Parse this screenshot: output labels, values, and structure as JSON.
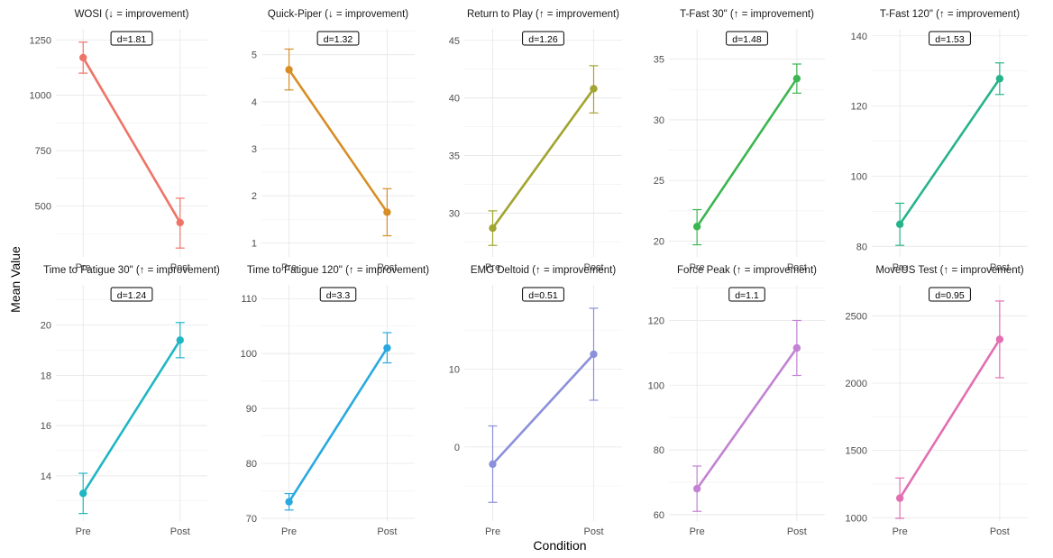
{
  "chart_data": {
    "type": "line",
    "xlabel": "Condition",
    "ylabel": "Mean Value",
    "categories": [
      "Pre",
      "Post"
    ],
    "grid": true,
    "panels": [
      {
        "title": "WOSI (↓ = improvement)",
        "effect": "d=1.81",
        "color": "#ee7468",
        "ylim": [
          270,
          1300
        ],
        "ticks": [
          500,
          750,
          1000,
          1250
        ],
        "tick_labels": [
          "500",
          "750",
          "1000",
          "1250"
        ],
        "values": [
          1170,
          425
        ],
        "error_low": [
          1100,
          310
        ],
        "error_high": [
          1240,
          535
        ]
      },
      {
        "title": "Quick-Piper (↓ = improvement)",
        "effect": "d=1.32",
        "color": "#d78e27",
        "ylim": [
          0.7,
          5.55
        ],
        "ticks": [
          1,
          2,
          3,
          4,
          5
        ],
        "tick_labels": [
          "1",
          "2",
          "3",
          "4",
          "5"
        ],
        "values": [
          4.68,
          1.65
        ],
        "error_low": [
          4.25,
          1.15
        ],
        "error_high": [
          5.12,
          2.15
        ]
      },
      {
        "title": "Return to Play (↑ = improvement)",
        "effect": "d=1.26",
        "color": "#a2a530",
        "ylim": [
          26.2,
          46.0
        ],
        "ticks": [
          30,
          35,
          40,
          45
        ],
        "tick_labels": [
          "30",
          "35",
          "40",
          "45"
        ],
        "values": [
          28.7,
          40.8
        ],
        "error_low": [
          27.2,
          38.7
        ],
        "error_high": [
          30.2,
          42.8
        ]
      },
      {
        "title": "T-Fast 30\" (↑ = improvement)",
        "effect": "d=1.48",
        "color": "#3cb650",
        "ylim": [
          18.7,
          37.5
        ],
        "ticks": [
          20,
          25,
          30,
          35
        ],
        "tick_labels": [
          "20",
          "25",
          "30",
          "35"
        ],
        "values": [
          21.2,
          33.4
        ],
        "error_low": [
          19.7,
          32.2
        ],
        "error_high": [
          22.6,
          34.6
        ]
      },
      {
        "title": "T-Fast 120\" (↑ = improvement)",
        "effect": "d=1.53",
        "color": "#27b38a",
        "ylim": [
          77,
          142
        ],
        "ticks": [
          80,
          100,
          120,
          140
        ],
        "tick_labels": [
          "80",
          "100",
          "120",
          "140"
        ],
        "values": [
          86.3,
          127.8
        ],
        "error_low": [
          80.3,
          123.3
        ],
        "error_high": [
          92.3,
          132.3
        ]
      },
      {
        "title": "Time to Fatigue 30\" (↑ = improvement)",
        "effect": "d=1.24",
        "color": "#1fb6c4",
        "ylim": [
          12.2,
          21.6
        ],
        "ticks": [
          14,
          16,
          18,
          20
        ],
        "tick_labels": [
          "14",
          "16",
          "18",
          "20"
        ],
        "values": [
          13.3,
          19.4
        ],
        "error_low": [
          12.5,
          18.7
        ],
        "error_high": [
          14.1,
          20.1
        ]
      },
      {
        "title": "Time to Fatigue 120\" (↑ = improvement)",
        "effect": "d=3.3",
        "color": "#2aa9e0",
        "ylim": [
          69.5,
          112.5
        ],
        "ticks": [
          70,
          80,
          90,
          100,
          110
        ],
        "tick_labels": [
          "70",
          "80",
          "90",
          "100",
          "110"
        ],
        "values": [
          73.0,
          101.0
        ],
        "error_low": [
          71.5,
          98.3
        ],
        "error_high": [
          74.5,
          103.8
        ]
      },
      {
        "title": "EMG Deltoid (↑ = improvement)",
        "effect": "d=0.51",
        "color": "#8b90dc",
        "ylim": [
          -9.5,
          20.8
        ],
        "ticks": [
          0,
          10
        ],
        "tick_labels": [
          "0",
          "10"
        ],
        "values": [
          -2.2,
          11.9
        ],
        "error_low": [
          -7.1,
          6.0
        ],
        "error_high": [
          2.7,
          17.8
        ]
      },
      {
        "title": "Force Peak (↑ = improvement)",
        "effect": "d=1.1",
        "color": "#c382d3",
        "ylim": [
          58,
          131
        ],
        "ticks": [
          60,
          80,
          100,
          120
        ],
        "tick_labels": [
          "60",
          "80",
          "100",
          "120"
        ],
        "values": [
          68.0,
          111.5
        ],
        "error_low": [
          61.0,
          103.0
        ],
        "error_high": [
          75.0,
          120.0
        ]
      },
      {
        "title": "MoveUS Test (↑ = improvement)",
        "effect": "d=0.95",
        "color": "#e26fb2",
        "ylim": [
          975,
          2730
        ],
        "ticks": [
          1000,
          1500,
          2000,
          2500
        ],
        "tick_labels": [
          "1000",
          "1500",
          "2000",
          "2500"
        ],
        "values": [
          1145,
          2325
        ],
        "error_low": [
          995,
          2040
        ],
        "error_high": [
          1295,
          2610
        ]
      }
    ]
  }
}
